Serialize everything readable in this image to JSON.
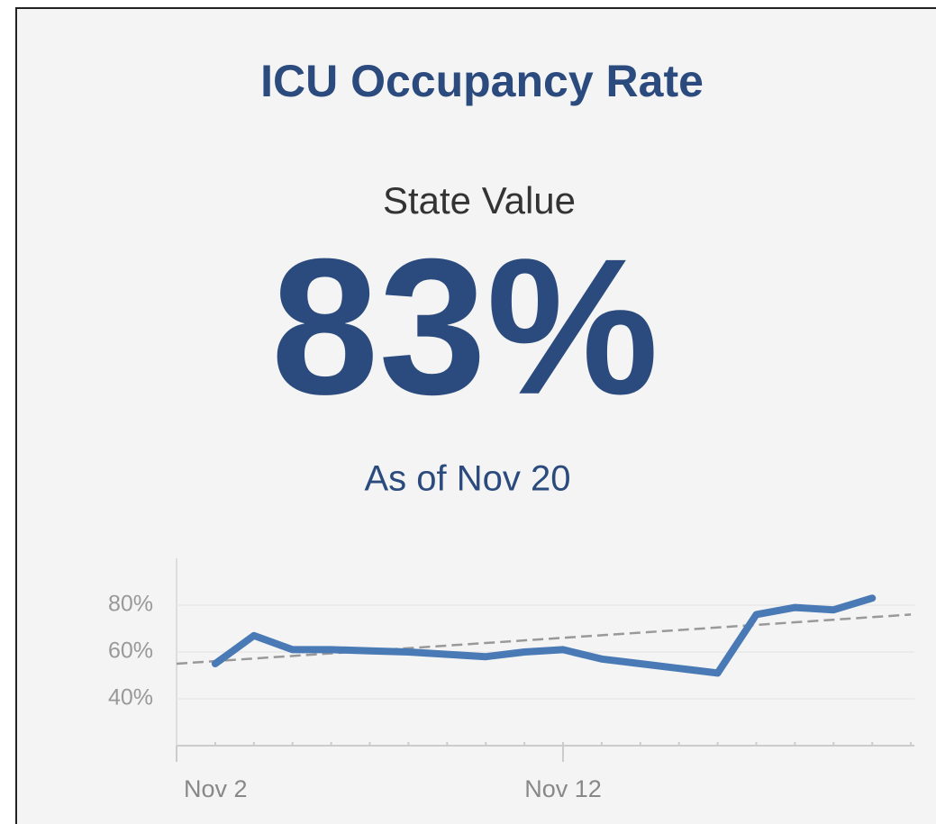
{
  "card": {
    "title": "ICU Occupancy Rate",
    "subtitle": "State Value",
    "value_label": "83%",
    "as_of": "As of Nov 20"
  },
  "chart_data": {
    "type": "line",
    "x": [
      "Nov 3",
      "Nov 4",
      "Nov 5",
      "Nov 6",
      "Nov 7",
      "Nov 8",
      "Nov 9",
      "Nov 10",
      "Nov 11",
      "Nov 12",
      "Nov 13",
      "Nov 14",
      "Nov 15",
      "Nov 16",
      "Nov 17",
      "Nov 18",
      "Nov 19",
      "Nov 20"
    ],
    "series": [
      {
        "name": "ICU Occupancy Rate",
        "color": "#4a7ab5",
        "values": [
          55,
          67,
          61,
          61,
          60.5,
          60,
          59,
          58,
          60,
          61,
          57,
          55,
          53,
          51,
          76,
          79,
          78,
          83
        ]
      }
    ],
    "trend": {
      "color": "#999999",
      "x": [
        "Nov 2",
        "Nov 21"
      ],
      "values": [
        55,
        76
      ]
    },
    "xlim": [
      "Nov 2",
      "Nov 21"
    ],
    "xticks": [
      "Nov 2",
      "Nov 12"
    ],
    "ylim": [
      20,
      100
    ],
    "yticks": [
      {
        "value": 40,
        "label": "40%"
      },
      {
        "value": 60,
        "label": "60%"
      },
      {
        "value": 80,
        "label": "80%"
      }
    ],
    "grid": true
  }
}
